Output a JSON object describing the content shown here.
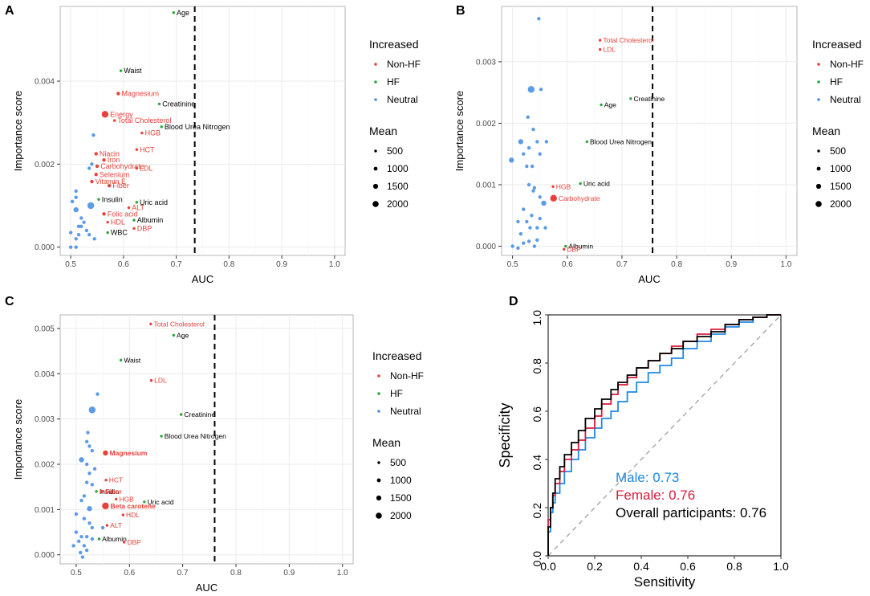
{
  "colors": {
    "non_hf": "#E8413B",
    "hf": "#2AA63B",
    "neutral": "#4A90E2",
    "male": "#1E88E5",
    "female": "#D81B3C",
    "overall": "#000000",
    "panel_bg": "#FFFFFF",
    "grid": "#EBEBEB"
  },
  "legend": {
    "color_title": "Increased",
    "color_items": [
      {
        "label": "Non-HF",
        "color_key": "non_hf"
      },
      {
        "label": "HF",
        "color_key": "hf"
      },
      {
        "label": "Neutral",
        "color_key": "neutral"
      }
    ],
    "size_title": "Mean",
    "size_items": [
      "500",
      "1000",
      "1500",
      "2000"
    ]
  },
  "chart_data": [
    {
      "panel": "A",
      "type": "scatter",
      "xlabel": "AUC",
      "ylabel": "Importance score",
      "xlim": [
        0.48,
        1.02
      ],
      "ylim": [
        -0.0002,
        0.0058
      ],
      "x_ticks": [
        "0.5",
        "0.6",
        "0.7",
        "0.8",
        "0.9",
        "1.0"
      ],
      "y_ticks": [
        "0.000",
        "0.002",
        "0.004"
      ],
      "threshold_x": 0.735,
      "labeled_points": [
        {
          "label": "Age",
          "x": 0.695,
          "y": 0.00565,
          "group": "hf",
          "size": 400
        },
        {
          "label": "Waist",
          "x": 0.595,
          "y": 0.00425,
          "group": "hf",
          "size": 400
        },
        {
          "label": "Magnesium",
          "x": 0.59,
          "y": 0.0037,
          "group": "non_hf",
          "size": 500
        },
        {
          "label": "Creatinine",
          "x": 0.668,
          "y": 0.00345,
          "group": "hf",
          "size": 400
        },
        {
          "label": "Energy",
          "x": 0.565,
          "y": 0.0032,
          "group": "non_hf",
          "size": 2000
        },
        {
          "label": "Total Cholesterol",
          "x": 0.583,
          "y": 0.00305,
          "group": "non_hf",
          "size": 400
        },
        {
          "label": "Blood Urea Nitrogen",
          "x": 0.672,
          "y": 0.0029,
          "group": "hf",
          "size": 400
        },
        {
          "label": "HGB",
          "x": 0.635,
          "y": 0.00275,
          "group": "non_hf",
          "size": 400
        },
        {
          "label": "HCT",
          "x": 0.625,
          "y": 0.00235,
          "group": "non_hf",
          "size": 400
        },
        {
          "label": "Niacin",
          "x": 0.548,
          "y": 0.00225,
          "group": "non_hf",
          "size": 500
        },
        {
          "label": "Iron",
          "x": 0.563,
          "y": 0.0021,
          "group": "non_hf",
          "size": 500
        },
        {
          "label": "Carbohydrate",
          "x": 0.55,
          "y": 0.00195,
          "group": "non_hf",
          "size": 500
        },
        {
          "label": "LDL",
          "x": 0.625,
          "y": 0.0019,
          "group": "non_hf",
          "size": 400
        },
        {
          "label": "Selenium",
          "x": 0.548,
          "y": 0.00175,
          "group": "non_hf",
          "size": 500
        },
        {
          "label": "Vitamin E",
          "x": 0.54,
          "y": 0.00158,
          "group": "non_hf",
          "size": 500
        },
        {
          "label": "Fiber",
          "x": 0.573,
          "y": 0.00148,
          "group": "non_hf",
          "size": 500
        },
        {
          "label": "Insulin",
          "x": 0.553,
          "y": 0.00115,
          "group": "hf",
          "size": 400
        },
        {
          "label": "Uric acid",
          "x": 0.625,
          "y": 0.00108,
          "group": "hf",
          "size": 400
        },
        {
          "label": "ALT",
          "x": 0.61,
          "y": 0.00095,
          "group": "non_hf",
          "size": 400
        },
        {
          "label": "Folic acid",
          "x": 0.563,
          "y": 0.0008,
          "group": "non_hf",
          "size": 500
        },
        {
          "label": "Albumin",
          "x": 0.62,
          "y": 0.00065,
          "group": "hf",
          "size": 400
        },
        {
          "label": "HDL",
          "x": 0.57,
          "y": 0.0006,
          "group": "non_hf",
          "size": 400
        },
        {
          "label": "DBP",
          "x": 0.62,
          "y": 0.00045,
          "group": "non_hf",
          "size": 400
        },
        {
          "label": "WBC",
          "x": 0.57,
          "y": 0.00035,
          "group": "hf",
          "size": 400
        }
      ],
      "neutral_points": [
        [
          0.543,
          0.0027,
          500
        ],
        [
          0.51,
          0.00135,
          500
        ],
        [
          0.51,
          0.0012,
          500
        ],
        [
          0.503,
          0.0011,
          500
        ],
        [
          0.538,
          0.001,
          1800
        ],
        [
          0.51,
          0.0009,
          900
        ],
        [
          0.52,
          0.0007,
          500
        ],
        [
          0.525,
          0.0006,
          500
        ],
        [
          0.52,
          0.0005,
          500
        ],
        [
          0.53,
          0.0004,
          500
        ],
        [
          0.515,
          0.0003,
          500
        ],
        [
          0.535,
          0.0003,
          500
        ],
        [
          0.545,
          0.0002,
          500
        ],
        [
          0.51,
          0.0002,
          500
        ],
        [
          0.5,
          0.00035,
          500
        ],
        [
          0.5,
          0.0,
          500
        ],
        [
          0.51,
          0.0,
          500
        ],
        [
          0.515,
          0.0005,
          500
        ],
        [
          0.54,
          0.002,
          500
        ],
        [
          0.535,
          0.0019,
          500
        ]
      ]
    },
    {
      "panel": "B",
      "type": "scatter",
      "xlabel": "AUC",
      "ylabel": "Importance score",
      "xlim": [
        0.48,
        1.02
      ],
      "ylim": [
        -0.00015,
        0.0039
      ],
      "x_ticks": [
        "0.5",
        "0.6",
        "0.7",
        "0.8",
        "0.9",
        "1.0"
      ],
      "y_ticks": [
        "0.000",
        "0.001",
        "0.002",
        "0.003"
      ],
      "threshold_x": 0.756,
      "labeled_points": [
        {
          "label": "Total Cholesterol",
          "x": 0.66,
          "y": 0.00335,
          "group": "non_hf",
          "size": 400
        },
        {
          "label": "LDL",
          "x": 0.66,
          "y": 0.0032,
          "group": "non_hf",
          "size": 400
        },
        {
          "label": "Creatinine",
          "x": 0.716,
          "y": 0.0024,
          "group": "hf",
          "size": 400
        },
        {
          "label": "Age",
          "x": 0.662,
          "y": 0.0023,
          "group": "hf",
          "size": 400
        },
        {
          "label": "Blood Urea Nitrogen",
          "x": 0.636,
          "y": 0.0017,
          "group": "hf",
          "size": 400
        },
        {
          "label": "Uric acid",
          "x": 0.624,
          "y": 0.00102,
          "group": "hf",
          "size": 400
        },
        {
          "label": "HGB",
          "x": 0.574,
          "y": 0.00097,
          "group": "non_hf",
          "size": 400
        },
        {
          "label": "Carbohydrate",
          "x": 0.575,
          "y": 0.00078,
          "group": "non_hf",
          "size": 1800
        },
        {
          "label": "Albumin",
          "x": 0.597,
          "y": 0.0,
          "group": "hf",
          "size": 400
        },
        {
          "label": "DBP",
          "x": 0.594,
          "y": -5e-05,
          "group": "non_hf",
          "size": 400
        }
      ],
      "neutral_points": [
        [
          0.548,
          0.0037,
          500
        ],
        [
          0.534,
          0.00255,
          1800
        ],
        [
          0.552,
          0.00255,
          500
        ],
        [
          0.528,
          0.0021,
          500
        ],
        [
          0.538,
          0.0019,
          500
        ],
        [
          0.515,
          0.0017,
          900
        ],
        [
          0.545,
          0.0017,
          500
        ],
        [
          0.562,
          0.0017,
          500
        ],
        [
          0.53,
          0.0016,
          500
        ],
        [
          0.498,
          0.0014,
          900
        ],
        [
          0.52,
          0.0015,
          500
        ],
        [
          0.55,
          0.0015,
          500
        ],
        [
          0.526,
          0.0013,
          500
        ],
        [
          0.536,
          0.0013,
          500
        ],
        [
          0.53,
          0.001,
          500
        ],
        [
          0.54,
          0.00095,
          500
        ],
        [
          0.538,
          0.0009,
          500
        ],
        [
          0.55,
          0.0008,
          500
        ],
        [
          0.557,
          0.0007,
          900
        ],
        [
          0.52,
          0.0006,
          500
        ],
        [
          0.535,
          0.0005,
          500
        ],
        [
          0.55,
          0.00045,
          500
        ],
        [
          0.51,
          0.0004,
          500
        ],
        [
          0.526,
          0.0004,
          500
        ],
        [
          0.532,
          0.0003,
          500
        ],
        [
          0.56,
          0.0003,
          500
        ],
        [
          0.545,
          0.0003,
          500
        ],
        [
          0.515,
          0.0002,
          500
        ],
        [
          0.52,
          5e-05,
          500
        ],
        [
          0.53,
          8e-05,
          500
        ],
        [
          0.545,
          0.0001,
          500
        ],
        [
          0.5,
          0.0,
          500
        ],
        [
          0.51,
          -3e-05,
          500
        ],
        [
          0.54,
          0.0,
          500
        ]
      ]
    },
    {
      "panel": "C",
      "type": "scatter",
      "xlabel": "AUC",
      "ylabel": "Importance score",
      "xlim": [
        0.47,
        1.02
      ],
      "ylim": [
        -0.0002,
        0.0053
      ],
      "x_ticks": [
        "0.5",
        "0.6",
        "0.7",
        "0.8",
        "0.9",
        "1.0"
      ],
      "y_ticks": [
        "0.000",
        "0.001",
        "0.002",
        "0.003",
        "0.004",
        "0.005"
      ],
      "threshold_x": 0.76,
      "labeled_points": [
        {
          "label": "Total Cholesterol",
          "x": 0.64,
          "y": 0.0051,
          "group": "non_hf",
          "size": 400
        },
        {
          "label": "Age",
          "x": 0.683,
          "y": 0.00485,
          "group": "hf",
          "size": 400
        },
        {
          "label": "Waist",
          "x": 0.584,
          "y": 0.0043,
          "group": "hf",
          "size": 400
        },
        {
          "label": "LDL",
          "x": 0.641,
          "y": 0.00385,
          "group": "non_hf",
          "size": 400
        },
        {
          "label": "Creatinine",
          "x": 0.697,
          "y": 0.0031,
          "group": "hf",
          "size": 400
        },
        {
          "label": "Blood Urea Nitrogen",
          "x": 0.66,
          "y": 0.00262,
          "group": "hf",
          "size": 400
        },
        {
          "label": "Magnesium",
          "x": 0.555,
          "y": 0.00225,
          "group": "non_hf",
          "size": 1000
        },
        {
          "label": "HCT",
          "x": 0.556,
          "y": 0.00165,
          "group": "non_hf",
          "size": 400
        },
        {
          "label": "Insulin",
          "x": 0.538,
          "y": 0.0014,
          "group": "hf",
          "size": 400
        },
        {
          "label": "Fiber",
          "x": 0.548,
          "y": 0.0014,
          "group": "non_hf",
          "size": 500
        },
        {
          "label": "HGB",
          "x": 0.575,
          "y": 0.00123,
          "group": "non_hf",
          "size": 400
        },
        {
          "label": "Uric acid",
          "x": 0.628,
          "y": 0.00117,
          "group": "hf",
          "size": 400
        },
        {
          "label": "Beta carotene",
          "x": 0.555,
          "y": 0.00108,
          "group": "non_hf",
          "size": 1800
        },
        {
          "label": "HDL",
          "x": 0.588,
          "y": 0.00088,
          "group": "non_hf",
          "size": 400
        },
        {
          "label": "ALT",
          "x": 0.558,
          "y": 0.00065,
          "group": "non_hf",
          "size": 400
        },
        {
          "label": "Albumin",
          "x": 0.543,
          "y": 0.00035,
          "group": "hf",
          "size": 400
        },
        {
          "label": "DBP",
          "x": 0.59,
          "y": 0.00028,
          "group": "non_hf",
          "size": 400
        }
      ],
      "neutral_points": [
        [
          0.54,
          0.00355,
          500
        ],
        [
          0.53,
          0.0032,
          1800
        ],
        [
          0.522,
          0.0027,
          500
        ],
        [
          0.52,
          0.0025,
          500
        ],
        [
          0.525,
          0.0024,
          500
        ],
        [
          0.53,
          0.0023,
          500
        ],
        [
          0.51,
          0.0021,
          900
        ],
        [
          0.52,
          0.002,
          500
        ],
        [
          0.535,
          0.0019,
          500
        ],
        [
          0.525,
          0.0018,
          500
        ],
        [
          0.52,
          0.0016,
          500
        ],
        [
          0.53,
          0.00155,
          500
        ],
        [
          0.515,
          0.0013,
          500
        ],
        [
          0.51,
          0.0012,
          500
        ],
        [
          0.525,
          0.00102,
          900
        ],
        [
          0.5,
          0.0009,
          500
        ],
        [
          0.515,
          0.0008,
          500
        ],
        [
          0.525,
          0.0007,
          500
        ],
        [
          0.53,
          0.0006,
          500
        ],
        [
          0.5,
          0.0005,
          500
        ],
        [
          0.51,
          0.0004,
          500
        ],
        [
          0.52,
          0.0004,
          500
        ],
        [
          0.53,
          0.00035,
          500
        ],
        [
          0.505,
          0.0003,
          500
        ],
        [
          0.515,
          0.0002,
          500
        ],
        [
          0.495,
          0.0002,
          500
        ],
        [
          0.52,
          0.0001,
          500
        ],
        [
          0.508,
          5e-05,
          500
        ],
        [
          0.512,
          -5e-05,
          500
        ],
        [
          0.55,
          0.0006,
          500
        ]
      ]
    },
    {
      "panel": "D",
      "type": "line",
      "xlabel": "Sensitivity",
      "ylabel": "Specificity",
      "xlim": [
        0,
        1
      ],
      "ylim": [
        0,
        1
      ],
      "x_ticks": [
        "0.0",
        "0.2",
        "0.4",
        "0.6",
        "0.8",
        "1.0"
      ],
      "y_ticks": [
        "0.0",
        "0.2",
        "0.4",
        "0.6",
        "0.8",
        "1.0"
      ],
      "annotations": [
        {
          "text": "Male: 0.73",
          "color_key": "male"
        },
        {
          "text": "Female: 0.76",
          "color_key": "female"
        },
        {
          "text": "Overall participants: 0.76",
          "color_key": "overall"
        }
      ],
      "series": [
        {
          "name": "Male",
          "color_key": "male",
          "x": [
            0,
            0.01,
            0.02,
            0.03,
            0.05,
            0.07,
            0.1,
            0.13,
            0.16,
            0.2,
            0.23,
            0.27,
            0.3,
            0.34,
            0.38,
            0.43,
            0.48,
            0.53,
            0.58,
            0.64,
            0.7,
            0.76,
            0.82,
            0.88,
            0.94,
            1.0
          ],
          "y": [
            0,
            0.1,
            0.18,
            0.22,
            0.26,
            0.3,
            0.35,
            0.4,
            0.44,
            0.49,
            0.53,
            0.57,
            0.6,
            0.64,
            0.68,
            0.72,
            0.76,
            0.79,
            0.82,
            0.86,
            0.89,
            0.92,
            0.95,
            0.97,
            0.99,
            1.0
          ]
        },
        {
          "name": "Female",
          "color_key": "female",
          "x": [
            0,
            0.01,
            0.02,
            0.03,
            0.05,
            0.07,
            0.1,
            0.13,
            0.16,
            0.2,
            0.23,
            0.27,
            0.3,
            0.34,
            0.38,
            0.43,
            0.48,
            0.53,
            0.58,
            0.64,
            0.7,
            0.76,
            0.82,
            0.88,
            0.94,
            1.0
          ],
          "y": [
            0,
            0.15,
            0.2,
            0.25,
            0.3,
            0.35,
            0.4,
            0.44,
            0.48,
            0.53,
            0.58,
            0.63,
            0.67,
            0.71,
            0.74,
            0.78,
            0.81,
            0.84,
            0.87,
            0.89,
            0.92,
            0.94,
            0.96,
            0.98,
            0.99,
            1.0
          ]
        },
        {
          "name": "Overall participants",
          "color_key": "overall",
          "x": [
            0,
            0.01,
            0.02,
            0.03,
            0.05,
            0.07,
            0.1,
            0.13,
            0.16,
            0.2,
            0.23,
            0.27,
            0.3,
            0.34,
            0.38,
            0.43,
            0.48,
            0.53,
            0.58,
            0.64,
            0.7,
            0.76,
            0.82,
            0.88,
            0.94,
            1.0
          ],
          "y": [
            0,
            0.12,
            0.2,
            0.26,
            0.32,
            0.37,
            0.42,
            0.47,
            0.52,
            0.57,
            0.61,
            0.65,
            0.69,
            0.72,
            0.75,
            0.78,
            0.81,
            0.84,
            0.86,
            0.89,
            0.91,
            0.93,
            0.96,
            0.98,
            0.99,
            1.0
          ]
        }
      ]
    }
  ]
}
